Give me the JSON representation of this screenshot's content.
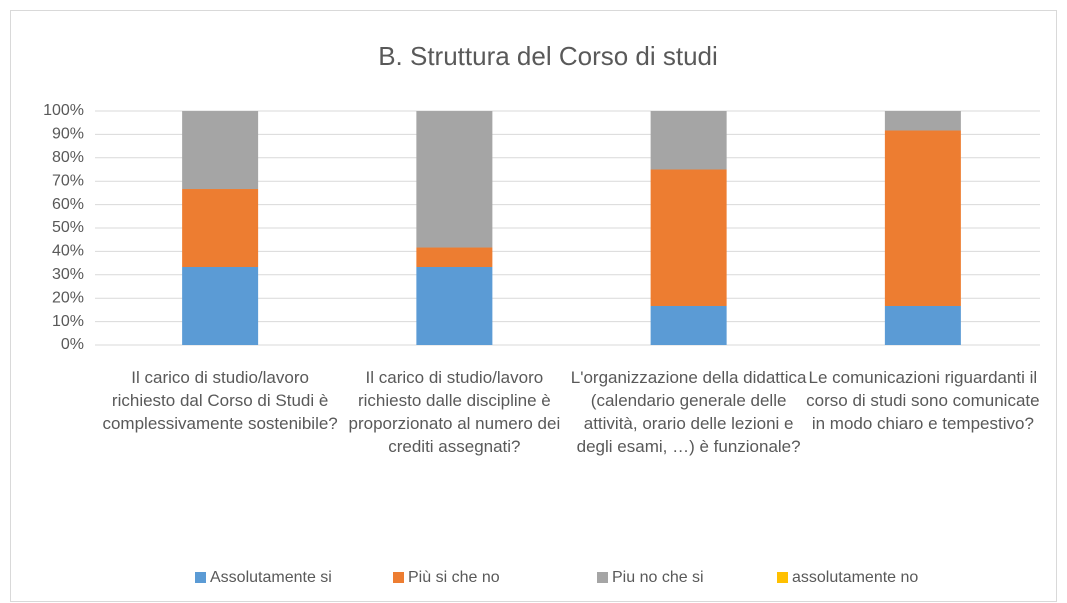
{
  "chart_data": {
    "type": "stacked_bar",
    "title": "B. Struttura del Corso di studi",
    "categories": [
      "Il carico di studio/lavoro richiesto dal Corso di Studi è complessivamente sostenibile?",
      "Il carico di studio/lavoro richiesto dalle discipline è proporzionato al numero dei crediti assegnati?",
      "L'organizzazione della didattica (calendario generale delle attività, orario delle lezioni e degli esami, …) è funzionale?",
      "Le comunicazioni riguardanti il corso di studi sono comunicate in modo chiaro e tempestivo?"
    ],
    "series": [
      {
        "name": "Assolutamente si",
        "color": "#5b9bd5",
        "values": [
          33.33,
          33.33,
          16.67,
          16.67
        ]
      },
      {
        "name": "Più si che no",
        "color": "#ed7d31",
        "values": [
          33.33,
          8.33,
          58.33,
          75
        ]
      },
      {
        "name": "Piu no che si",
        "color": "#a5a5a5",
        "values": [
          33.33,
          58.33,
          25,
          8.33
        ]
      },
      {
        "name": "assolutamente no",
        "color": "#ffc000",
        "values": [
          0,
          0,
          0,
          0
        ]
      }
    ],
    "ylim": [
      0,
      100
    ],
    "yticks": [
      {
        "value": 0,
        "label": "0%"
      },
      {
        "value": 10,
        "label": "10%"
      },
      {
        "value": 20,
        "label": "20%"
      },
      {
        "value": 30,
        "label": "30%"
      },
      {
        "value": 40,
        "label": "40%"
      },
      {
        "value": 50,
        "label": "50%"
      },
      {
        "value": 60,
        "label": "60%"
      },
      {
        "value": 70,
        "label": "70%"
      },
      {
        "value": 80,
        "label": "80%"
      },
      {
        "value": 90,
        "label": "90%"
      },
      {
        "value": 100,
        "label": "100%"
      }
    ],
    "grid": true,
    "legend": "bottom"
  }
}
